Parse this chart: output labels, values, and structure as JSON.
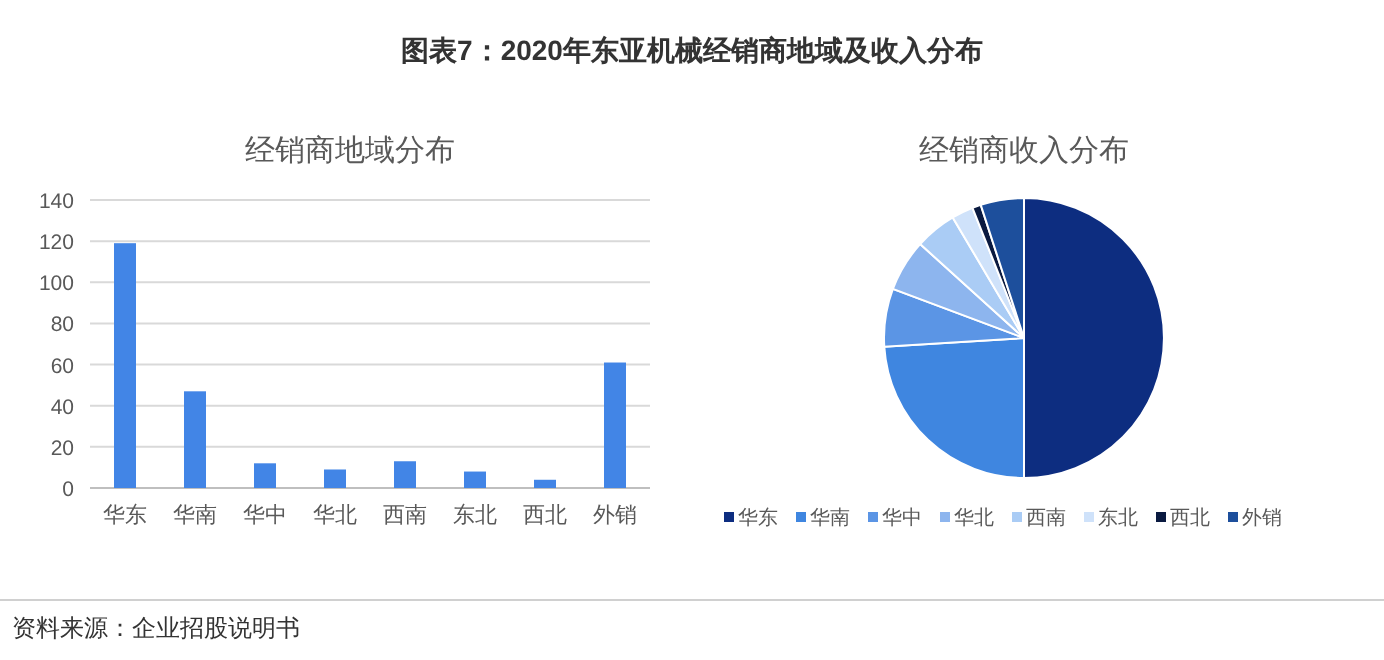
{
  "chart_data": [
    {
      "type": "bar",
      "title": "经销商地域分布",
      "annotations": [
        "图表7：2020年东亚机械经销商地域及收入分布",
        "资料来源：企业招股说明书"
      ],
      "categories": [
        "华东",
        "华南",
        "华中",
        "华北",
        "西南",
        "东北",
        "西北",
        "外销"
      ],
      "values": [
        119,
        47,
        12,
        9,
        13,
        8,
        4,
        61
      ],
      "color": "#4285e6",
      "ylim": [
        0,
        140
      ],
      "yticks": [
        0,
        20,
        40,
        60,
        80,
        100,
        120,
        140
      ],
      "grid": "y"
    },
    {
      "type": "pie",
      "title": "经销商收入分布",
      "categories": [
        "华东",
        "华南",
        "华中",
        "华北",
        "西南",
        "东北",
        "西北",
        "外销"
      ],
      "values": [
        50,
        24,
        6.7,
        6,
        4.8,
        2.5,
        1,
        5
      ],
      "colors": [
        "#0d2d80",
        "#3f86e0",
        "#5b95e5",
        "#8db5ee",
        "#aaccf5",
        "#cfe2fa",
        "#0a1a40",
        "#1d4f9c"
      ],
      "legend": "bottom"
    }
  ]
}
